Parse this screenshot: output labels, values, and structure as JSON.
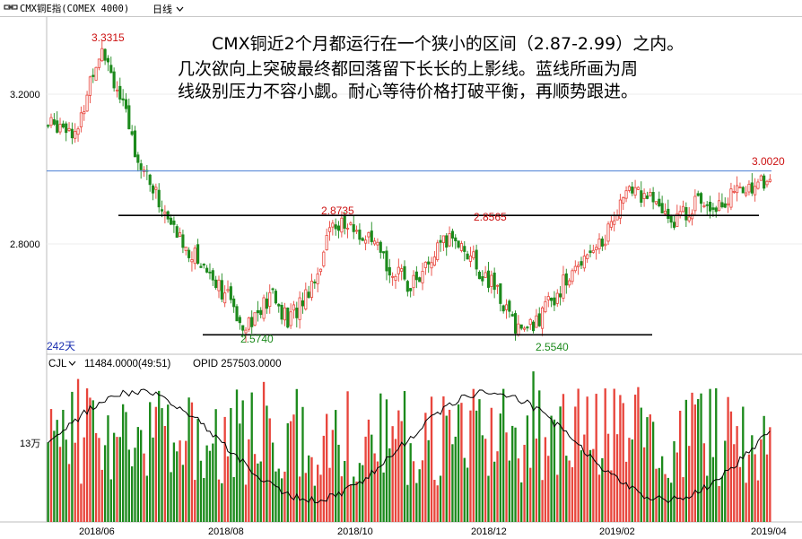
{
  "header": {
    "symbol_icon": "link-icon",
    "name": "CMX铜E指(COMEX 4000)",
    "period": "日线",
    "period_icon": "chevron-down-icon"
  },
  "annotation": {
    "line1": "CMX铜近2个月都运行在一个狭小的区间（2.87-2.99）之内。",
    "line2": "几次欲向上突破最终都回落留下长长的上影线。蓝线所画为周",
    "line3": "线级别压力不容小觑。耐心等待价格打破平衡，再顺势跟进。"
  },
  "price_panel": {
    "days_label": "242天",
    "markers": {
      "high": "3.3315",
      "r1": "2.8735",
      "r2": "2.8565",
      "low1": "2.5740",
      "low2": "2.5540",
      "last_high": "3.0020"
    }
  },
  "volume_panel": {
    "indicator": "CJL",
    "values_text": "11484.0000(49:51)",
    "opid_text": "OPID 257503.0000",
    "y_label": "13万"
  },
  "colors": {
    "up": "#e8453c",
    "down": "#1c8a1c",
    "blue_line": "#4a7fd4",
    "support_line": "#000000",
    "opi_line": "#000000"
  },
  "chart_data": [
    {
      "type": "candlestick",
      "title": "",
      "ylabel": "",
      "y_ticks": [
        "3.2000",
        "2.8000"
      ],
      "ylim": [
        2.53,
        3.37
      ],
      "x_ticks": [
        "2018/06",
        "2018/08",
        "2018/10",
        "2018/12",
        "2019/02",
        "2019/04"
      ],
      "x_tick_index": [
        10,
        53,
        96,
        139,
        182,
        225
      ],
      "x": [
        0,
        5,
        10,
        14,
        18,
        22,
        26,
        30,
        35,
        40,
        45,
        50,
        55,
        60,
        65,
        70,
        75,
        80,
        85,
        90,
        95,
        100,
        105,
        110,
        115,
        120,
        125,
        130,
        135,
        140,
        145,
        150,
        155,
        160,
        165,
        170,
        175,
        180,
        185,
        190,
        195,
        200,
        205,
        210,
        215,
        220,
        225,
        230,
        235,
        241
      ],
      "close": [
        3.1,
        3.11,
        3.08,
        3.22,
        3.31,
        3.22,
        3.12,
        3.02,
        2.94,
        2.86,
        2.8,
        2.76,
        2.72,
        2.66,
        2.6,
        2.62,
        2.67,
        2.6,
        2.66,
        2.73,
        2.86,
        2.84,
        2.82,
        2.78,
        2.73,
        2.7,
        2.72,
        2.78,
        2.82,
        2.78,
        2.72,
        2.68,
        2.6,
        2.58,
        2.62,
        2.68,
        2.72,
        2.79,
        2.8,
        2.89,
        2.94,
        2.92,
        2.88,
        2.86,
        2.9,
        2.91,
        2.9,
        2.93,
        2.95,
        2.96
      ],
      "resistance_line": 2.985,
      "range_line": 2.872,
      "support_line": 2.568,
      "labels": {
        "3.3315": 22,
        "2.8735": 96,
        "2.8565": 141,
        "2.5740": 68,
        "2.5540": 165,
        "3.0020": 237
      }
    },
    {
      "type": "bar",
      "title": "",
      "series_name": "CJL",
      "ylabel": "",
      "y_ticks": [
        "13万"
      ],
      "note": "daily volume bars with open interest (OPID) line"
    }
  ]
}
